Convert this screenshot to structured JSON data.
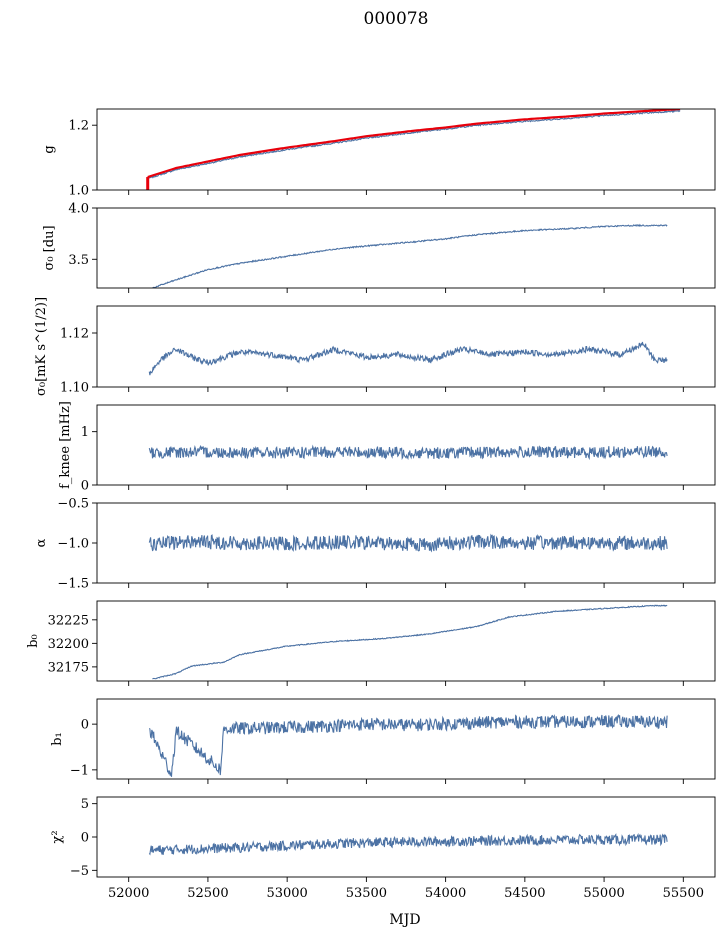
{
  "figure": {
    "title": "000078",
    "xlabel": "MJD"
  },
  "colors": {
    "series": "#4c72a4",
    "fit": "#e8000b"
  },
  "chart_data": [
    {
      "type": "line",
      "id": "g",
      "ylabel": "g",
      "ylim": [
        1.0,
        1.25
      ],
      "yticks": [
        1.0,
        1.2
      ],
      "ytick_labels": [
        "1.0",
        "1.2"
      ],
      "xlim": [
        51800,
        55700
      ],
      "series": [
        {
          "role": "data",
          "style": "line",
          "x": [
            52120,
            52300,
            52500,
            52700,
            53000,
            53300,
            53500,
            53800,
            54000,
            54200,
            54500,
            54800,
            55000,
            55200,
            55480
          ],
          "y": [
            1.035,
            1.063,
            1.082,
            1.102,
            1.125,
            1.145,
            1.16,
            1.178,
            1.188,
            1.2,
            1.212,
            1.222,
            1.23,
            1.236,
            1.244
          ]
        },
        {
          "role": "fit",
          "style": "line",
          "x": [
            52120,
            52300,
            52500,
            52700,
            53000,
            53300,
            53500,
            53800,
            54000,
            54200,
            54500,
            54800,
            55000,
            55200,
            55480
          ],
          "y": [
            1.04,
            1.068,
            1.088,
            1.108,
            1.131,
            1.151,
            1.166,
            1.183,
            1.193,
            1.205,
            1.218,
            1.228,
            1.236,
            1.242,
            1.25
          ]
        },
        {
          "role": "fit-start",
          "style": "vline",
          "x": [
            52120,
            52120
          ],
          "y": [
            1.0,
            1.04
          ]
        }
      ]
    },
    {
      "type": "line",
      "id": "sigma0-du",
      "ylabel": "σ₀ [du]",
      "ylim": [
        3.22,
        4.0
      ],
      "yticks": [
        3.5,
        4.0
      ],
      "ytick_labels": [
        "3.5",
        "4.0"
      ],
      "xlim": [
        51800,
        55700
      ],
      "series": [
        {
          "role": "data",
          "style": "line",
          "x": [
            52150,
            52300,
            52500,
            52700,
            53000,
            53300,
            53500,
            53800,
            54000,
            54200,
            54500,
            54800,
            55000,
            55200,
            55400
          ],
          "y": [
            3.22,
            3.3,
            3.4,
            3.46,
            3.53,
            3.6,
            3.63,
            3.67,
            3.7,
            3.74,
            3.78,
            3.8,
            3.82,
            3.83,
            3.83
          ]
        }
      ]
    },
    {
      "type": "line",
      "id": "sigma0-mk",
      "ylabel": "σ₀[mK s^(1/2)]",
      "ylim": [
        1.1,
        1.13
      ],
      "yticks": [
        1.1,
        1.12
      ],
      "ytick_labels": [
        "1.10",
        "1.12"
      ],
      "xlim": [
        51800,
        55700
      ],
      "series": [
        {
          "role": "data",
          "style": "line",
          "x": [
            52130,
            52200,
            52300,
            52400,
            52500,
            52700,
            52900,
            53100,
            53300,
            53500,
            53700,
            53900,
            54100,
            54300,
            54500,
            54700,
            54900,
            55100,
            55250,
            55320,
            55400
          ],
          "y": [
            1.105,
            1.11,
            1.114,
            1.111,
            1.109,
            1.113,
            1.112,
            1.11,
            1.114,
            1.111,
            1.112,
            1.11,
            1.114,
            1.112,
            1.113,
            1.112,
            1.114,
            1.112,
            1.116,
            1.11,
            1.11
          ]
        }
      ]
    },
    {
      "type": "line",
      "id": "fknee",
      "ylabel": "f_knee [mHz]",
      "ylim": [
        0,
        1.5
      ],
      "yticks": [
        0,
        1
      ],
      "ytick_labels": [
        "0",
        "1"
      ],
      "xlim": [
        51800,
        55700
      ],
      "series": [
        {
          "role": "data",
          "style": "line",
          "x": [
            52130,
            52400,
            52700,
            53000,
            53300,
            53600,
            53900,
            54200,
            54500,
            54800,
            55100,
            55400
          ],
          "y": [
            0.6,
            0.62,
            0.61,
            0.6,
            0.62,
            0.61,
            0.6,
            0.61,
            0.62,
            0.61,
            0.62,
            0.63
          ]
        }
      ]
    },
    {
      "type": "line",
      "id": "alpha",
      "ylabel": "α",
      "ylim": [
        -1.5,
        -0.5
      ],
      "yticks": [
        -1.5,
        -1.0,
        -0.5
      ],
      "ytick_labels": [
        "−1.5",
        "−1.0",
        "−0.5"
      ],
      "xlim": [
        51800,
        55700
      ],
      "series": [
        {
          "role": "data",
          "style": "line",
          "x": [
            52130,
            52400,
            52700,
            53000,
            53300,
            53600,
            53900,
            54200,
            54500,
            54800,
            55100,
            55400
          ],
          "y": [
            -1.02,
            -0.98,
            -1.0,
            -1.01,
            -0.99,
            -1.0,
            -1.02,
            -0.98,
            -1.0,
            -0.99,
            -1.0,
            -1.0
          ]
        }
      ]
    },
    {
      "type": "line",
      "id": "b0",
      "ylabel": "b₀",
      "ylim": [
        32160,
        32245
      ],
      "yticks": [
        32175,
        32200,
        32225
      ],
      "ytick_labels": [
        "32175",
        "32200",
        "32225"
      ],
      "xlim": [
        51800,
        55700
      ],
      "series": [
        {
          "role": "data",
          "style": "line",
          "x": [
            52150,
            52300,
            52400,
            52600,
            52700,
            53000,
            53300,
            53600,
            53900,
            54200,
            54400,
            54700,
            55000,
            55300,
            55400
          ],
          "y": [
            32162,
            32168,
            32176,
            32180,
            32188,
            32197,
            32202,
            32205,
            32210,
            32218,
            32228,
            32234,
            32237,
            32240,
            32240
          ]
        }
      ]
    },
    {
      "type": "line",
      "id": "b1",
      "ylabel": "b₁",
      "ylim": [
        -1.2,
        0.55
      ],
      "yticks": [
        -1,
        0
      ],
      "ytick_labels": [
        "−1",
        "0"
      ],
      "xlim": [
        51800,
        55700
      ],
      "series": [
        {
          "role": "data",
          "style": "line",
          "x": [
            52130,
            52270,
            52300,
            52580,
            52600,
            52900,
            53200,
            53500,
            53800,
            54100,
            54400,
            54700,
            55000,
            55400
          ],
          "y": [
            -0.1,
            -1.1,
            -0.15,
            -1.0,
            -0.1,
            -0.08,
            -0.05,
            0.0,
            -0.02,
            0.02,
            0.05,
            0.05,
            0.06,
            0.05
          ]
        }
      ]
    },
    {
      "type": "line",
      "id": "chi2",
      "ylabel": "χ²",
      "ylim": [
        -6,
        6
      ],
      "yticks": [
        -5,
        0,
        5
      ],
      "ytick_labels": [
        "−5",
        "0",
        "5"
      ],
      "xlim": [
        51800,
        55700
      ],
      "xticks": [
        52000,
        52500,
        53000,
        53500,
        54000,
        54500,
        55000,
        55500
      ],
      "xtick_labels": [
        "52000",
        "52500",
        "53000",
        "53500",
        "54000",
        "54500",
        "55000",
        "55500"
      ],
      "series": [
        {
          "role": "data",
          "style": "line",
          "x": [
            52130,
            52400,
            52700,
            53000,
            53300,
            53600,
            53900,
            54200,
            54500,
            54800,
            55100,
            55400
          ],
          "y": [
            -2.0,
            -1.8,
            -1.6,
            -1.3,
            -1.0,
            -0.8,
            -0.7,
            -0.6,
            -0.5,
            -0.4,
            -0.4,
            -0.4
          ]
        }
      ]
    }
  ]
}
